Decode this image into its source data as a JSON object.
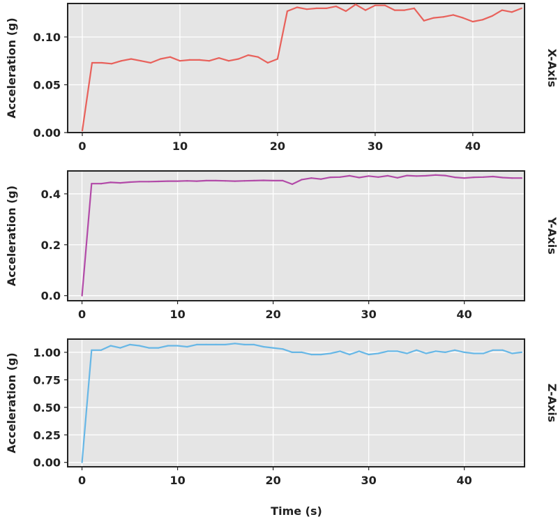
{
  "xlabel": "Time (s)",
  "chart_data": [
    {
      "type": "line",
      "side_label": "X-Axis",
      "ylabel": "Acceleration (g)",
      "xlabel": "Time (s)",
      "xlim": [
        -1.5,
        45.3
      ],
      "ylim": [
        0.0,
        0.135
      ],
      "xticks": [
        "0",
        "10",
        "20",
        "30",
        "40"
      ],
      "yticks": [
        "0.00",
        "0.05",
        "0.10"
      ],
      "grid": true,
      "color": "#e8615b",
      "x": [
        0,
        1,
        2,
        3,
        4,
        5,
        6,
        7,
        8,
        9,
        10,
        11,
        12,
        13,
        14,
        15,
        16,
        17,
        18,
        19,
        20,
        21,
        22,
        23,
        24,
        25,
        26,
        27,
        28,
        29,
        30,
        31,
        32,
        33,
        34,
        35,
        36,
        37,
        38,
        39,
        40,
        41,
        42,
        43,
        44,
        45
      ],
      "values": [
        0.002,
        0.073,
        0.073,
        0.072,
        0.075,
        0.077,
        0.075,
        0.073,
        0.077,
        0.079,
        0.075,
        0.076,
        0.076,
        0.075,
        0.078,
        0.075,
        0.077,
        0.081,
        0.079,
        0.073,
        0.077,
        0.127,
        0.131,
        0.129,
        0.13,
        0.13,
        0.132,
        0.127,
        0.134,
        0.128,
        0.133,
        0.133,
        0.128,
        0.128,
        0.13,
        0.117,
        0.12,
        0.121,
        0.123,
        0.12,
        0.116,
        0.118,
        0.122,
        0.128,
        0.126,
        0.13
      ]
    },
    {
      "type": "line",
      "side_label": "Y-Axis",
      "ylabel": "Acceleration (g)",
      "xlabel": "Time (s)",
      "xlim": [
        -1.5,
        46.3
      ],
      "ylim": [
        -0.02,
        0.49
      ],
      "xticks": [
        "0",
        "10",
        "20",
        "30",
        "40"
      ],
      "yticks": [
        "0.0",
        "0.2",
        "0.4"
      ],
      "grid": true,
      "color": "#b24aa8",
      "x": [
        0,
        1,
        2,
        3,
        4,
        5,
        6,
        7,
        8,
        9,
        10,
        11,
        12,
        13,
        14,
        15,
        16,
        17,
        18,
        19,
        20,
        21,
        22,
        23,
        24,
        25,
        26,
        27,
        28,
        29,
        30,
        31,
        32,
        33,
        34,
        35,
        36,
        37,
        38,
        39,
        40,
        41,
        42,
        43,
        44,
        45,
        46
      ],
      "values": [
        0.0,
        0.44,
        0.44,
        0.445,
        0.443,
        0.446,
        0.448,
        0.448,
        0.449,
        0.45,
        0.45,
        0.451,
        0.45,
        0.452,
        0.452,
        0.451,
        0.45,
        0.451,
        0.452,
        0.453,
        0.452,
        0.452,
        0.438,
        0.456,
        0.462,
        0.458,
        0.465,
        0.466,
        0.471,
        0.464,
        0.47,
        0.466,
        0.471,
        0.463,
        0.472,
        0.47,
        0.471,
        0.474,
        0.472,
        0.465,
        0.462,
        0.465,
        0.466,
        0.468,
        0.464,
        0.462,
        0.462
      ]
    },
    {
      "type": "line",
      "side_label": "Z-Axis",
      "ylabel": "Acceleration (g)",
      "xlabel": "Time (s)",
      "xlim": [
        -1.5,
        46.3
      ],
      "ylim": [
        -0.04,
        1.12
      ],
      "xticks": [
        "0",
        "10",
        "20",
        "30",
        "40"
      ],
      "yticks": [
        "0.00",
        "0.25",
        "0.50",
        "0.75",
        "1.00"
      ],
      "grid": true,
      "color": "#67b7e6",
      "x": [
        0,
        1,
        2,
        3,
        4,
        5,
        6,
        7,
        8,
        9,
        10,
        11,
        12,
        13,
        14,
        15,
        16,
        17,
        18,
        19,
        20,
        21,
        22,
        23,
        24,
        25,
        26,
        27,
        28,
        29,
        30,
        31,
        32,
        33,
        34,
        35,
        36,
        37,
        38,
        39,
        40,
        41,
        42,
        43,
        44,
        45,
        46
      ],
      "values": [
        0.0,
        1.02,
        1.02,
        1.06,
        1.04,
        1.07,
        1.06,
        1.04,
        1.04,
        1.06,
        1.06,
        1.05,
        1.07,
        1.07,
        1.07,
        1.07,
        1.08,
        1.07,
        1.07,
        1.05,
        1.04,
        1.03,
        1.0,
        1.0,
        0.98,
        0.98,
        0.99,
        1.01,
        0.98,
        1.01,
        0.98,
        0.99,
        1.01,
        1.01,
        0.99,
        1.02,
        0.99,
        1.01,
        1.0,
        1.02,
        1.0,
        0.99,
        0.99,
        1.02,
        1.02,
        0.99,
        1.0
      ]
    }
  ]
}
